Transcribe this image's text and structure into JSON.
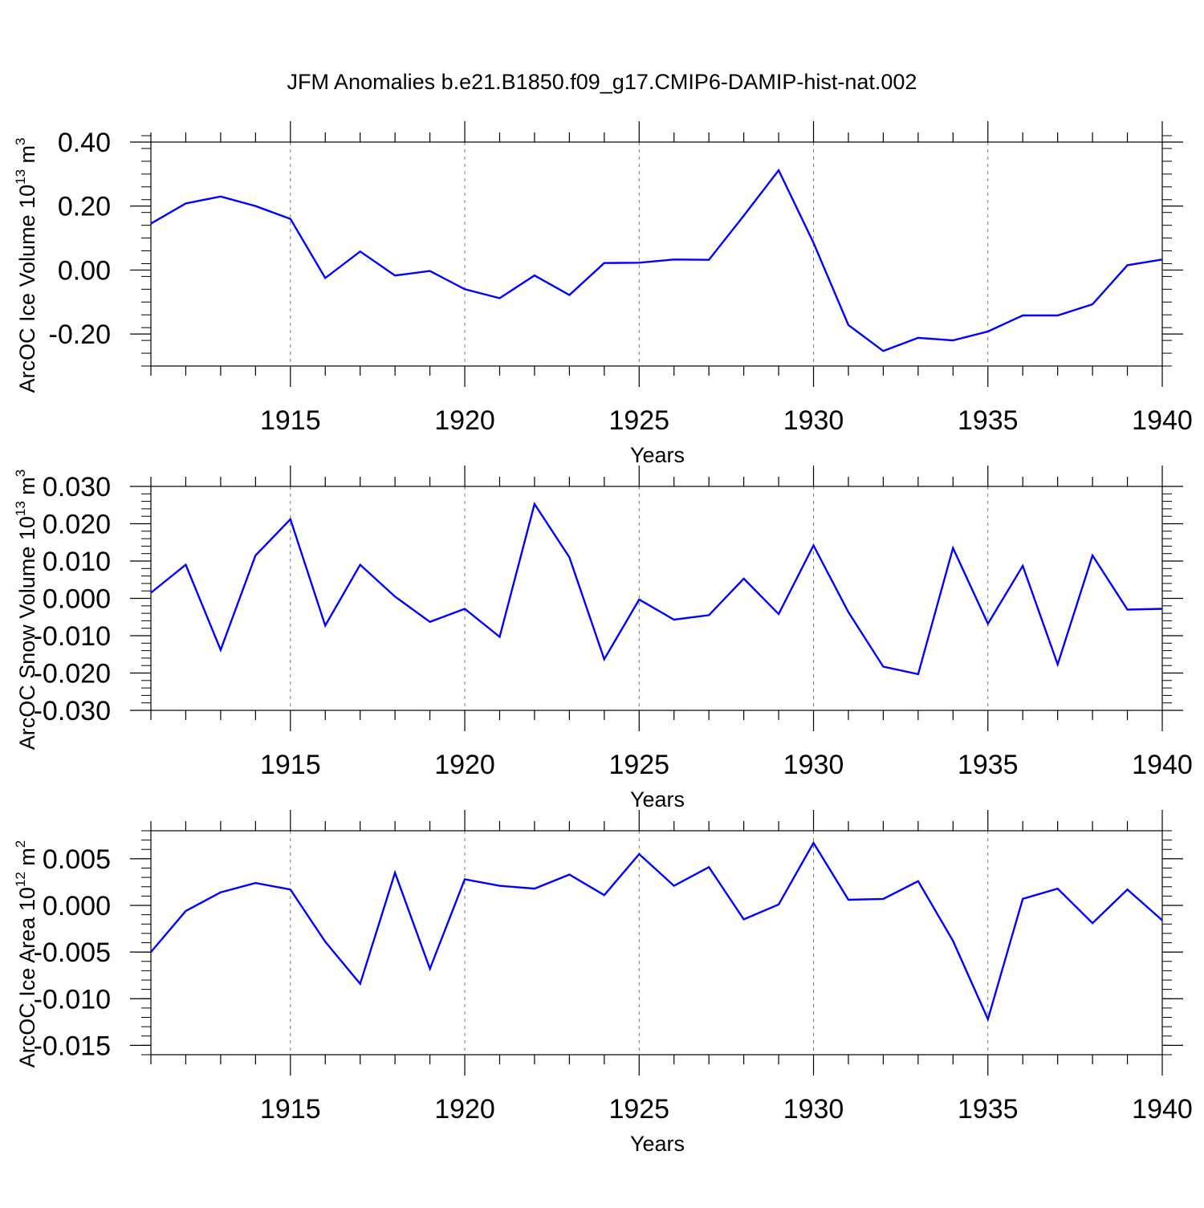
{
  "page_title": "JFM Anomalies b.e21.B1850.f09_g17.CMIP6-DAMIP-hist-nat.002",
  "colors": {
    "line": "#0000ff",
    "axis": "#000000",
    "grid": "#777777"
  },
  "chart_data": [
    {
      "type": "line",
      "title": "JFM Anomalies b.e21.B1850.f09_g17.CMIP6-DAMIP-hist-nat.002",
      "xlabel": "Years",
      "ylabel": "ArcOC Ice Volume 10",
      "ylabel_exp": "13",
      "ylabel_unit": " m",
      "ylabel_unit_exp": "3",
      "xlim": [
        1911,
        1940
      ],
      "ylim": [
        -0.3,
        0.4
      ],
      "x_major_ticks": [
        1915,
        1920,
        1925,
        1930,
        1935,
        1940
      ],
      "x_tick_labels": [
        "1915",
        "1920",
        "1925",
        "1930",
        "1935",
        "1940"
      ],
      "y_major_ticks": [
        -0.2,
        0.0,
        0.2,
        0.4
      ],
      "y_tick_labels": [
        "-0.20",
        "0.00",
        "0.20",
        "0.40"
      ],
      "y_minor_step": 0.04,
      "grid": "vertical dashed at major x ticks",
      "x": [
        1911,
        1912,
        1913,
        1914,
        1915,
        1916,
        1917,
        1918,
        1919,
        1920,
        1921,
        1922,
        1923,
        1924,
        1925,
        1926,
        1927,
        1928,
        1929,
        1930,
        1931,
        1932,
        1933,
        1934,
        1935,
        1936,
        1937,
        1938,
        1939,
        1940
      ],
      "series": [
        {
          "name": "ArcOC Ice Volume",
          "values": [
            0.145,
            0.208,
            0.23,
            0.2,
            0.16,
            -0.025,
            0.058,
            -0.017,
            -0.003,
            -0.06,
            -0.088,
            -0.017,
            -0.078,
            0.022,
            0.023,
            0.033,
            0.032,
            0.17,
            0.312,
            0.085,
            -0.172,
            -0.253,
            -0.212,
            -0.22,
            -0.192,
            -0.142,
            -0.142,
            -0.107,
            0.015,
            0.033
          ]
        }
      ]
    },
    {
      "type": "line",
      "xlabel": "Years",
      "ylabel": "ArcOC Snow Volume 10",
      "ylabel_exp": "13",
      "ylabel_unit": " m",
      "ylabel_unit_exp": "3",
      "xlim": [
        1911,
        1940
      ],
      "ylim": [
        -0.03,
        0.03
      ],
      "x_major_ticks": [
        1915,
        1920,
        1925,
        1930,
        1935,
        1940
      ],
      "x_tick_labels": [
        "1915",
        "1920",
        "1925",
        "1930",
        "1935",
        "1940"
      ],
      "y_major_ticks": [
        -0.03,
        -0.02,
        -0.01,
        0.0,
        0.01,
        0.02,
        0.03
      ],
      "y_tick_labels": [
        "-0.030",
        "-0.020",
        "-0.010",
        "0.000",
        "0.010",
        "0.020",
        "0.030"
      ],
      "y_minor_step": 0.002,
      "grid": "vertical dashed at major x ticks",
      "x": [
        1911,
        1912,
        1913,
        1914,
        1915,
        1916,
        1917,
        1918,
        1919,
        1920,
        1921,
        1922,
        1923,
        1924,
        1925,
        1926,
        1927,
        1928,
        1929,
        1930,
        1931,
        1932,
        1933,
        1934,
        1935,
        1936,
        1937,
        1938,
        1939,
        1940
      ],
      "series": [
        {
          "name": "ArcOC Snow Volume",
          "values": [
            0.0015,
            0.009,
            -0.0138,
            0.0115,
            0.0212,
            -0.0073,
            0.009,
            0.0005,
            -0.0063,
            -0.0028,
            -0.0103,
            0.0253,
            0.011,
            -0.0163,
            -0.0003,
            -0.0057,
            -0.0045,
            0.0053,
            -0.0042,
            0.0142,
            -0.0037,
            -0.0183,
            -0.0203,
            0.0135,
            -0.0068,
            0.0087,
            -0.0177,
            0.0115,
            -0.003,
            -0.0028
          ]
        }
      ]
    },
    {
      "type": "line",
      "xlabel": "Years",
      "ylabel": "ArcOC Ice Area 10",
      "ylabel_exp": "12",
      "ylabel_unit": " m",
      "ylabel_unit_exp": "2",
      "xlim": [
        1911,
        1940
      ],
      "ylim": [
        -0.016,
        0.008
      ],
      "x_major_ticks": [
        1915,
        1920,
        1925,
        1930,
        1935,
        1940
      ],
      "x_tick_labels": [
        "1915",
        "1920",
        "1925",
        "1930",
        "1935",
        "1940"
      ],
      "y_major_ticks": [
        -0.015,
        -0.01,
        -0.005,
        0.0,
        0.005
      ],
      "y_tick_labels": [
        "-0.015",
        "-0.010",
        "-0.005",
        "0.000",
        "0.005"
      ],
      "y_minor_step": 0.001,
      "grid": "vertical dashed at major x ticks",
      "x": [
        1911,
        1912,
        1913,
        1914,
        1915,
        1916,
        1917,
        1918,
        1919,
        1920,
        1921,
        1922,
        1923,
        1924,
        1925,
        1926,
        1927,
        1928,
        1929,
        1930,
        1931,
        1932,
        1933,
        1934,
        1935,
        1936,
        1937,
        1938,
        1939,
        1940
      ],
      "series": [
        {
          "name": "ArcOC Ice Area",
          "values": [
            -0.005,
            -0.0006,
            0.0014,
            0.0024,
            0.0017,
            -0.0039,
            -0.0084,
            0.0035,
            -0.0068,
            0.0028,
            0.0021,
            0.0018,
            0.0033,
            0.0011,
            0.0055,
            0.0021,
            0.0041,
            -0.0015,
            0.0001,
            0.0067,
            0.0006,
            0.0007,
            0.0026,
            -0.0038,
            -0.0122,
            0.0007,
            0.0018,
            -0.0019,
            0.0017,
            -0.0016
          ]
        }
      ]
    }
  ]
}
